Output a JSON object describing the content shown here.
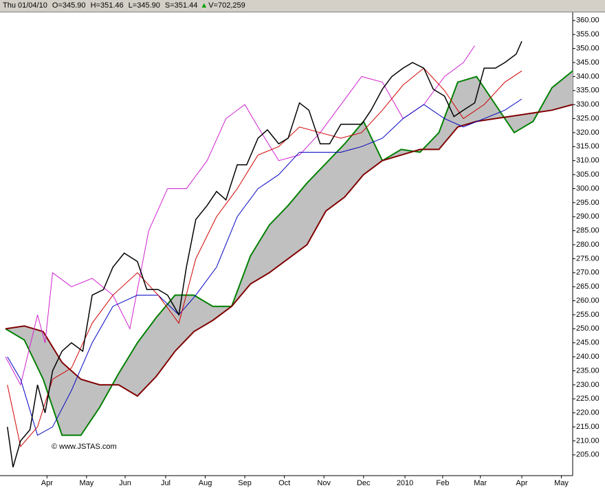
{
  "header": {
    "date": "Thu 01/04/10",
    "open": "O=345.90",
    "high": "H=351.46",
    "low": "L=345.90",
    "settle": "S=351.44",
    "volume": "V=702,259"
  },
  "chart_data": {
    "type": "line",
    "watermark": "© www.JSTAS.com",
    "xlim": [
      0,
      301
    ],
    "ylim": [
      197.6,
      362.9
    ],
    "xticks": [
      {
        "value": 22,
        "label": "Apr"
      },
      {
        "value": 43,
        "label": "May"
      },
      {
        "value": 63.5,
        "label": "Jun"
      },
      {
        "value": 85,
        "label": "Jul"
      },
      {
        "value": 106,
        "label": "Aug"
      },
      {
        "value": 127,
        "label": "Sep"
      },
      {
        "value": 148,
        "label": "Oct"
      },
      {
        "value": 169,
        "label": "Nov"
      },
      {
        "value": 190,
        "label": "Dec"
      },
      {
        "value": 212,
        "label": "2010"
      },
      {
        "value": 232,
        "label": "Feb"
      },
      {
        "value": 252,
        "label": "Mar"
      },
      {
        "value": 274,
        "label": "Apr"
      },
      {
        "value": 295,
        "label": "May"
      }
    ],
    "yticks": [
      {
        "value": 205,
        "label": "205.00"
      },
      {
        "value": 210,
        "label": "210.00"
      },
      {
        "value": 215,
        "label": "215.00"
      },
      {
        "value": 220,
        "label": "220.00"
      },
      {
        "value": 225,
        "label": "225.00"
      },
      {
        "value": 230,
        "label": "230.00"
      },
      {
        "value": 235,
        "label": "235.00"
      },
      {
        "value": 240,
        "label": "240.00"
      },
      {
        "value": 245,
        "label": "245.00"
      },
      {
        "value": 250,
        "label": "250.00"
      },
      {
        "value": 255,
        "label": "255.00"
      },
      {
        "value": 260,
        "label": "260.00"
      },
      {
        "value": 265,
        "label": "265.00"
      },
      {
        "value": 270,
        "label": "270.00"
      },
      {
        "value": 275,
        "label": "275.00"
      },
      {
        "value": 280,
        "label": "280.00"
      },
      {
        "value": 285,
        "label": "285.00"
      },
      {
        "value": 290,
        "label": "290.00"
      },
      {
        "value": 295,
        "label": "295.00"
      },
      {
        "value": 300,
        "label": "300.00"
      },
      {
        "value": 305,
        "label": "305.00"
      },
      {
        "value": 310,
        "label": "310.00"
      },
      {
        "value": 315,
        "label": "315.00"
      },
      {
        "value": 320,
        "label": "320.00"
      },
      {
        "value": 325,
        "label": "325.00"
      },
      {
        "value": 330,
        "label": "330.00"
      },
      {
        "value": 335,
        "label": "335.00"
      },
      {
        "value": 340,
        "label": "340.00"
      },
      {
        "value": 345,
        "label": "345.00"
      },
      {
        "value": 350,
        "label": "350.00"
      },
      {
        "value": 355,
        "label": "355.00"
      },
      {
        "value": 360,
        "label": "360.00"
      }
    ],
    "cloud_fill": "#c0c0c0",
    "series": [
      {
        "color": "#008000",
        "width": 2,
        "x": [
          0,
          10,
          20,
          30,
          40,
          50,
          60,
          70,
          80,
          90,
          100,
          110,
          120,
          130,
          140,
          150,
          160,
          170,
          180,
          190,
          200,
          210,
          220,
          230,
          240,
          250,
          260,
          270,
          280,
          290,
          301
        ],
        "values": [
          250,
          246,
          232,
          212,
          212,
          222,
          234,
          245,
          254,
          262,
          262,
          258,
          258,
          276,
          287,
          294,
          302,
          309,
          316,
          324,
          310,
          314,
          313,
          320,
          338,
          340,
          330,
          320,
          324,
          336,
          342
        ]
      },
      {
        "color": "#800000",
        "width": 2,
        "x": [
          0,
          10,
          20,
          30,
          40,
          50,
          60,
          70,
          80,
          90,
          100,
          110,
          120,
          130,
          140,
          150,
          160,
          170,
          180,
          190,
          200,
          210,
          220,
          230,
          240,
          250,
          260,
          270,
          280,
          290,
          301
        ],
        "values": [
          250,
          251,
          249,
          238,
          232,
          230,
          230,
          226,
          233,
          242,
          249,
          253,
          258,
          266,
          270,
          275,
          280,
          292,
          297,
          305,
          310,
          312,
          314,
          314,
          322,
          324,
          325,
          326,
          327,
          328,
          330
        ]
      },
      {
        "color": "#d020d0",
        "width": 1,
        "x": [
          0,
          8,
          17,
          21,
          25,
          35,
          46,
          57,
          66,
          76,
          86,
          96,
          107,
          117,
          127,
          134,
          145,
          156,
          167,
          178,
          189,
          200,
          211,
          222,
          233,
          243,
          249
        ],
        "values": [
          240,
          230,
          255,
          245,
          270,
          265,
          268,
          262,
          250,
          285,
          300,
          300,
          310,
          325,
          330,
          322,
          310,
          312,
          320,
          330,
          340,
          338,
          325,
          330,
          340,
          345,
          351
        ]
      },
      {
        "color": "#0000c0",
        "width": 1,
        "x": [
          1,
          8,
          17,
          25,
          35,
          46,
          57,
          70,
          81,
          92,
          101,
          112,
          123,
          134,
          145,
          156,
          167,
          178,
          189,
          200,
          211,
          222,
          233,
          243,
          254,
          265,
          274
        ],
        "values": [
          240,
          232,
          212,
          215,
          228,
          245,
          258,
          262,
          262,
          255,
          262,
          272,
          290,
          300,
          305,
          313,
          313,
          313,
          315,
          318,
          325,
          330,
          325,
          322,
          325,
          328,
          332
        ]
      },
      {
        "color": "#d00000",
        "width": 1,
        "x": [
          1,
          8,
          17,
          25,
          35,
          46,
          57,
          70,
          81,
          92,
          101,
          112,
          123,
          134,
          145,
          156,
          167,
          178,
          189,
          200,
          211,
          222,
          233,
          243,
          254,
          265,
          274
        ],
        "values": [
          230,
          208,
          215,
          232,
          236,
          252,
          262,
          270,
          262,
          252,
          275,
          290,
          300,
          312,
          315,
          322,
          320,
          318,
          320,
          328,
          337,
          343,
          335,
          325,
          330,
          338,
          342
        ]
      },
      {
        "color": "#000000",
        "width": 1.5,
        "x": [
          1,
          4,
          8,
          13,
          17,
          21,
          25,
          30,
          35,
          41,
          46,
          52,
          57,
          63,
          70,
          75,
          81,
          86,
          92,
          96,
          101,
          107,
          112,
          117,
          123,
          128,
          134,
          139,
          145,
          150,
          156,
          161,
          167,
          172,
          178,
          183,
          189,
          194,
          200,
          205,
          211,
          216,
          222,
          227,
          233,
          238,
          243,
          249,
          254,
          260,
          265,
          271,
          274
        ],
        "values": [
          215,
          200.6,
          210,
          214,
          230,
          220,
          235,
          242,
          245,
          242,
          262,
          264,
          272,
          277,
          274,
          264,
          264,
          262,
          255,
          272,
          289,
          294,
          299,
          296,
          308.5,
          308.5,
          318,
          321,
          316,
          318,
          330.6,
          328,
          316,
          316,
          323,
          323,
          323,
          328,
          335.5,
          340,
          343,
          345,
          343,
          335.5,
          333,
          325.7,
          328,
          330.6,
          343,
          343,
          345,
          348,
          352.6
        ]
      }
    ]
  }
}
